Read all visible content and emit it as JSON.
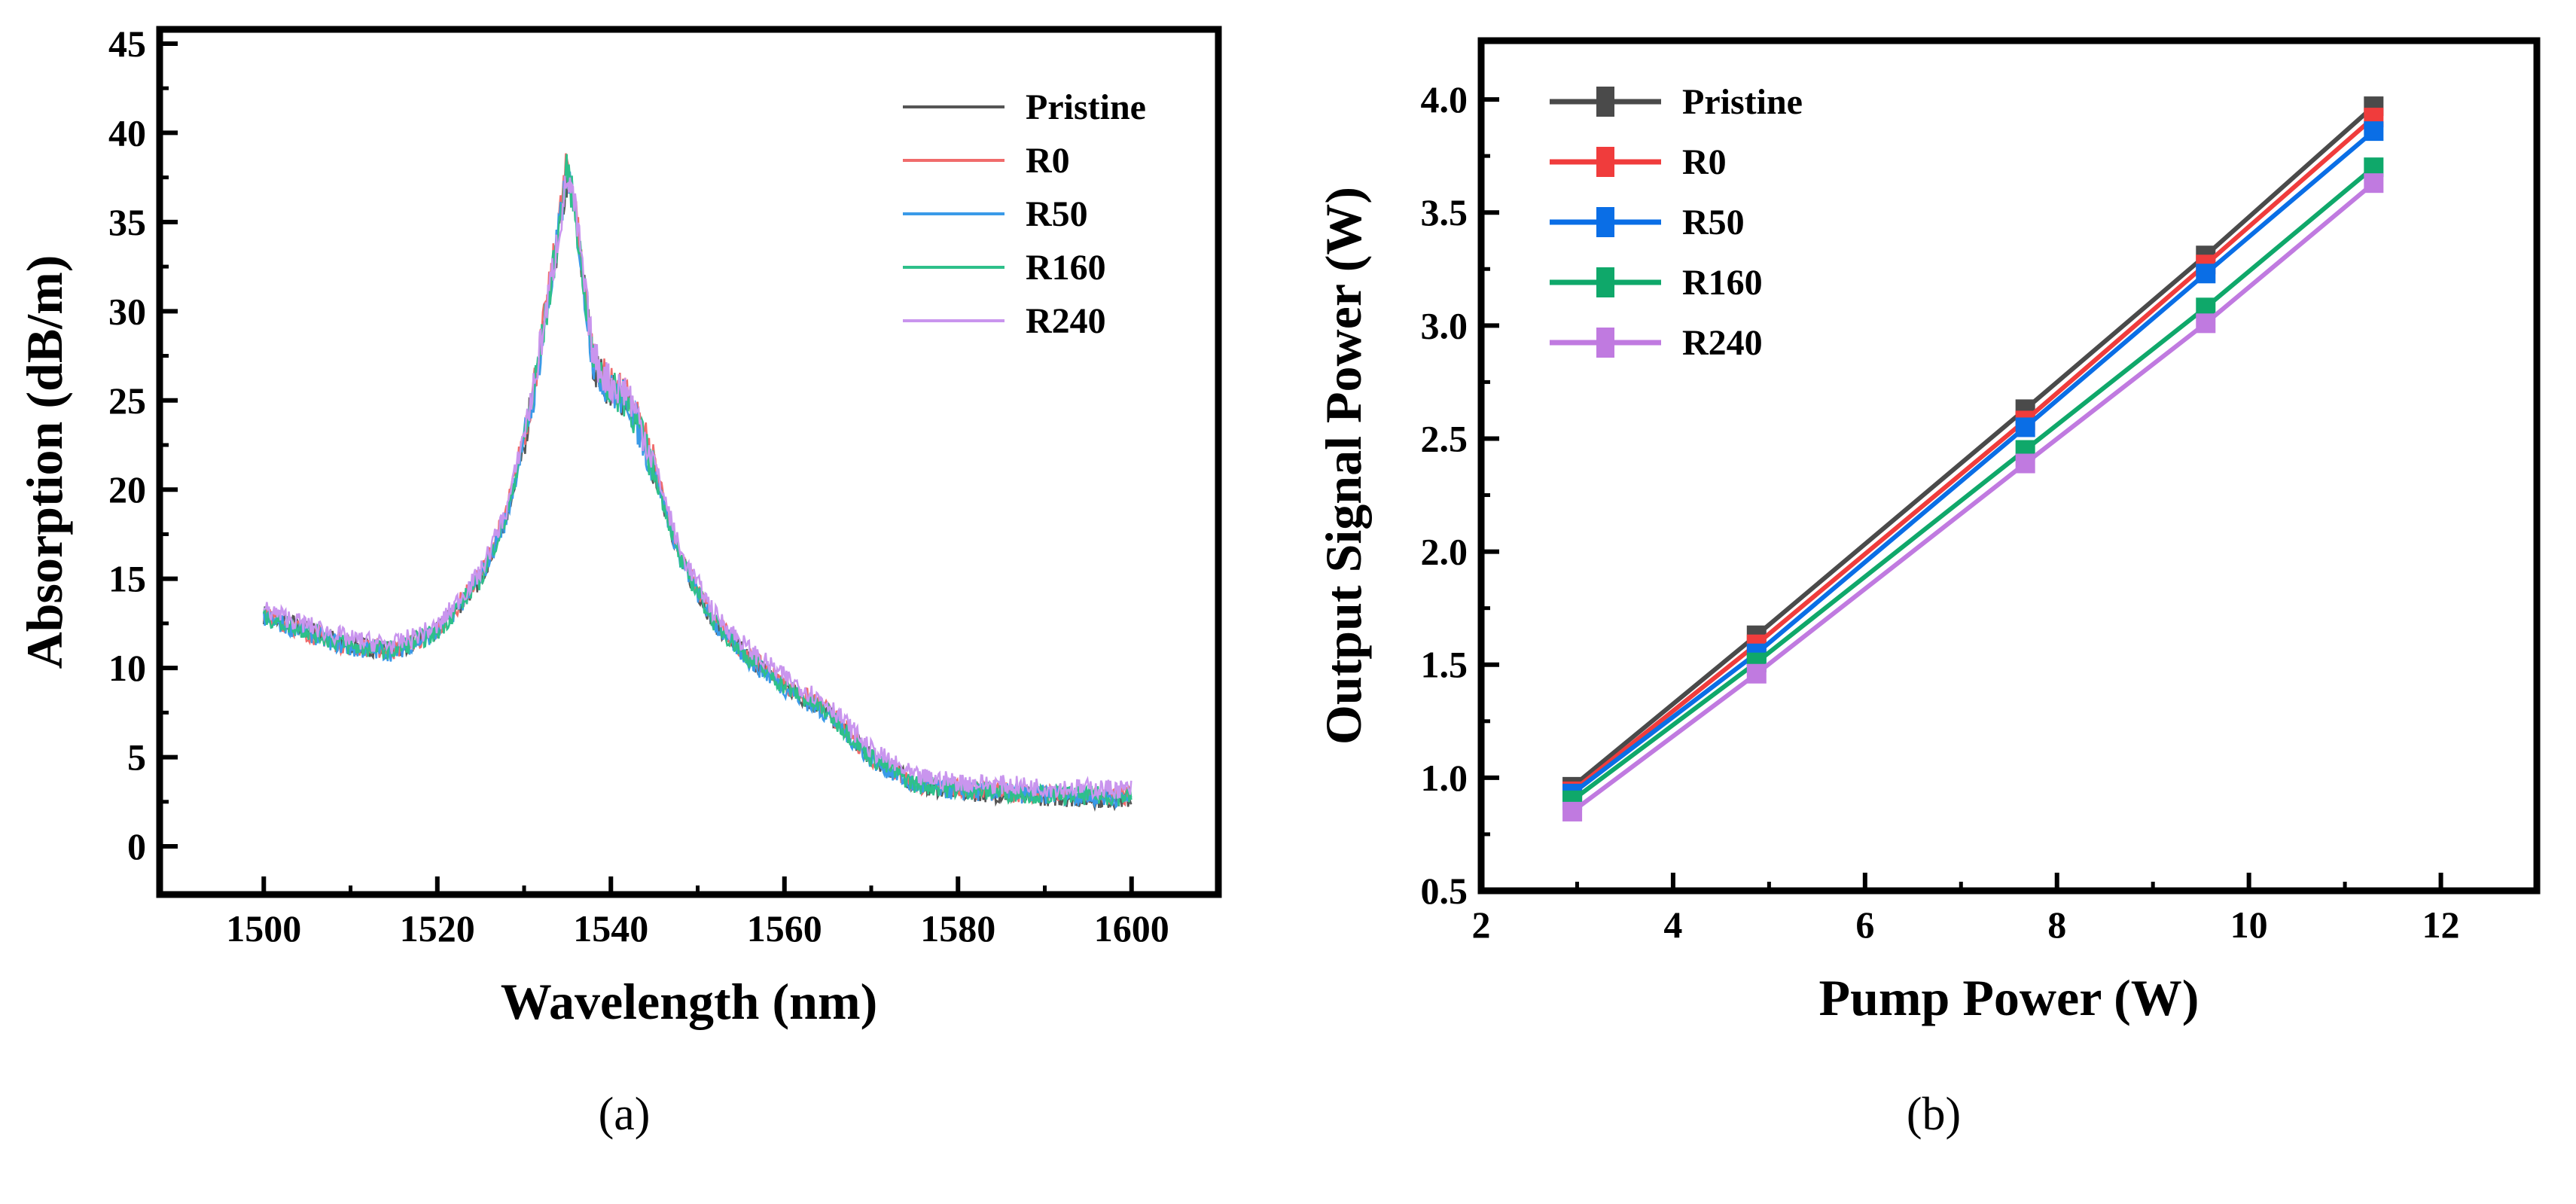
{
  "chart_data": [
    {
      "type": "line",
      "panel_label": "(a)",
      "xlabel": "Wavelength (nm)",
      "ylabel": "Absorption (dB/m)",
      "xlim": [
        1488,
        1610
      ],
      "ylim": [
        -2.7,
        45.8
      ],
      "xticks": [
        1500,
        1520,
        1540,
        1560,
        1580,
        1600
      ],
      "yticks": [
        0,
        5,
        10,
        15,
        20,
        25,
        30,
        35,
        40,
        45
      ],
      "grid": false,
      "legend_position": "top-right",
      "x": [
        1500,
        1505,
        1510,
        1515,
        1520,
        1525,
        1528,
        1531,
        1533,
        1535,
        1536,
        1537,
        1538,
        1540,
        1542,
        1545,
        1548,
        1552,
        1556,
        1560,
        1565,
        1570,
        1575,
        1580,
        1590,
        1600
      ],
      "series": [
        {
          "name": "Pristine",
          "color": "#555555",
          "values": [
            13,
            12.2,
            11.3,
            11,
            12,
            15,
            18.5,
            25,
            31,
            37.5,
            35,
            31,
            27,
            25.5,
            25,
            21,
            16,
            12.5,
            10.5,
            9,
            7.5,
            5,
            3.5,
            3.1,
            2.8,
            2.6
          ]
        },
        {
          "name": "R0",
          "color": "#f06b6b",
          "values": [
            13,
            12,
            11.2,
            11,
            12,
            15.2,
            18.8,
            25.5,
            31.5,
            38.5,
            35.5,
            31,
            27.5,
            25.8,
            25.2,
            21.5,
            16.2,
            12.6,
            10.6,
            9.1,
            7.6,
            5,
            3.5,
            3.2,
            2.9,
            2.8
          ]
        },
        {
          "name": "R50",
          "color": "#3a9ae8",
          "values": [
            12.8,
            12,
            11.1,
            10.9,
            12,
            15,
            18.4,
            25,
            31,
            38,
            35,
            30.8,
            27,
            25.5,
            25,
            21,
            16,
            12.4,
            10.4,
            8.9,
            7.4,
            4.9,
            3.4,
            3.1,
            2.9,
            2.7
          ]
        },
        {
          "name": "R160",
          "color": "#2ec08a",
          "values": [
            12.9,
            12.1,
            11.2,
            11,
            12,
            15,
            18.5,
            25.2,
            31.2,
            38,
            35.2,
            31,
            27.2,
            25.6,
            25,
            21,
            16,
            12.5,
            10.5,
            9,
            7.5,
            5,
            3.5,
            3.2,
            2.9,
            2.8
          ]
        },
        {
          "name": "R240",
          "color": "#c995ee",
          "values": [
            13.3,
            12.4,
            11.6,
            11.3,
            12.3,
            15.4,
            18.9,
            25.4,
            31.4,
            37.6,
            35.3,
            31.2,
            27.4,
            25.9,
            25.5,
            21.5,
            16.5,
            13,
            11,
            9.5,
            8,
            5.4,
            3.9,
            3.6,
            3.3,
            3.2
          ]
        }
      ]
    },
    {
      "type": "line",
      "panel_label": "(b)",
      "xlabel": "Pump Power (W)",
      "ylabel": "Output Signal Power (W)",
      "xlim": [
        2,
        13
      ],
      "ylim": [
        0.5,
        4.26
      ],
      "xticks": [
        2,
        4,
        6,
        8,
        10,
        12
      ],
      "yticks": [
        0.5,
        1.0,
        1.5,
        2.0,
        2.5,
        3.0,
        3.5,
        4.0
      ],
      "ytick_labels": [
        "0.5",
        "1.0",
        "1.5",
        "2.0",
        "2.5",
        "3.0",
        "3.5",
        "4.0"
      ],
      "grid": false,
      "legend_position": "top-left",
      "x": [
        2.95,
        4.87,
        7.67,
        9.55,
        11.3
      ],
      "series": [
        {
          "name": "Pristine",
          "color": "#4a4a4a",
          "values": [
            0.96,
            1.63,
            2.63,
            3.31,
            3.97
          ]
        },
        {
          "name": "R0",
          "color": "#f03c3c",
          "values": [
            0.94,
            1.59,
            2.58,
            3.27,
            3.92
          ]
        },
        {
          "name": "R50",
          "color": "#0a6ee6",
          "values": [
            0.93,
            1.55,
            2.55,
            3.23,
            3.86
          ]
        },
        {
          "name": "R160",
          "color": "#0fa86a",
          "values": [
            0.9,
            1.51,
            2.45,
            3.08,
            3.7
          ]
        },
        {
          "name": "R240",
          "color": "#c07ae0",
          "values": [
            0.85,
            1.46,
            2.39,
            3.01,
            3.63
          ]
        }
      ]
    }
  ]
}
